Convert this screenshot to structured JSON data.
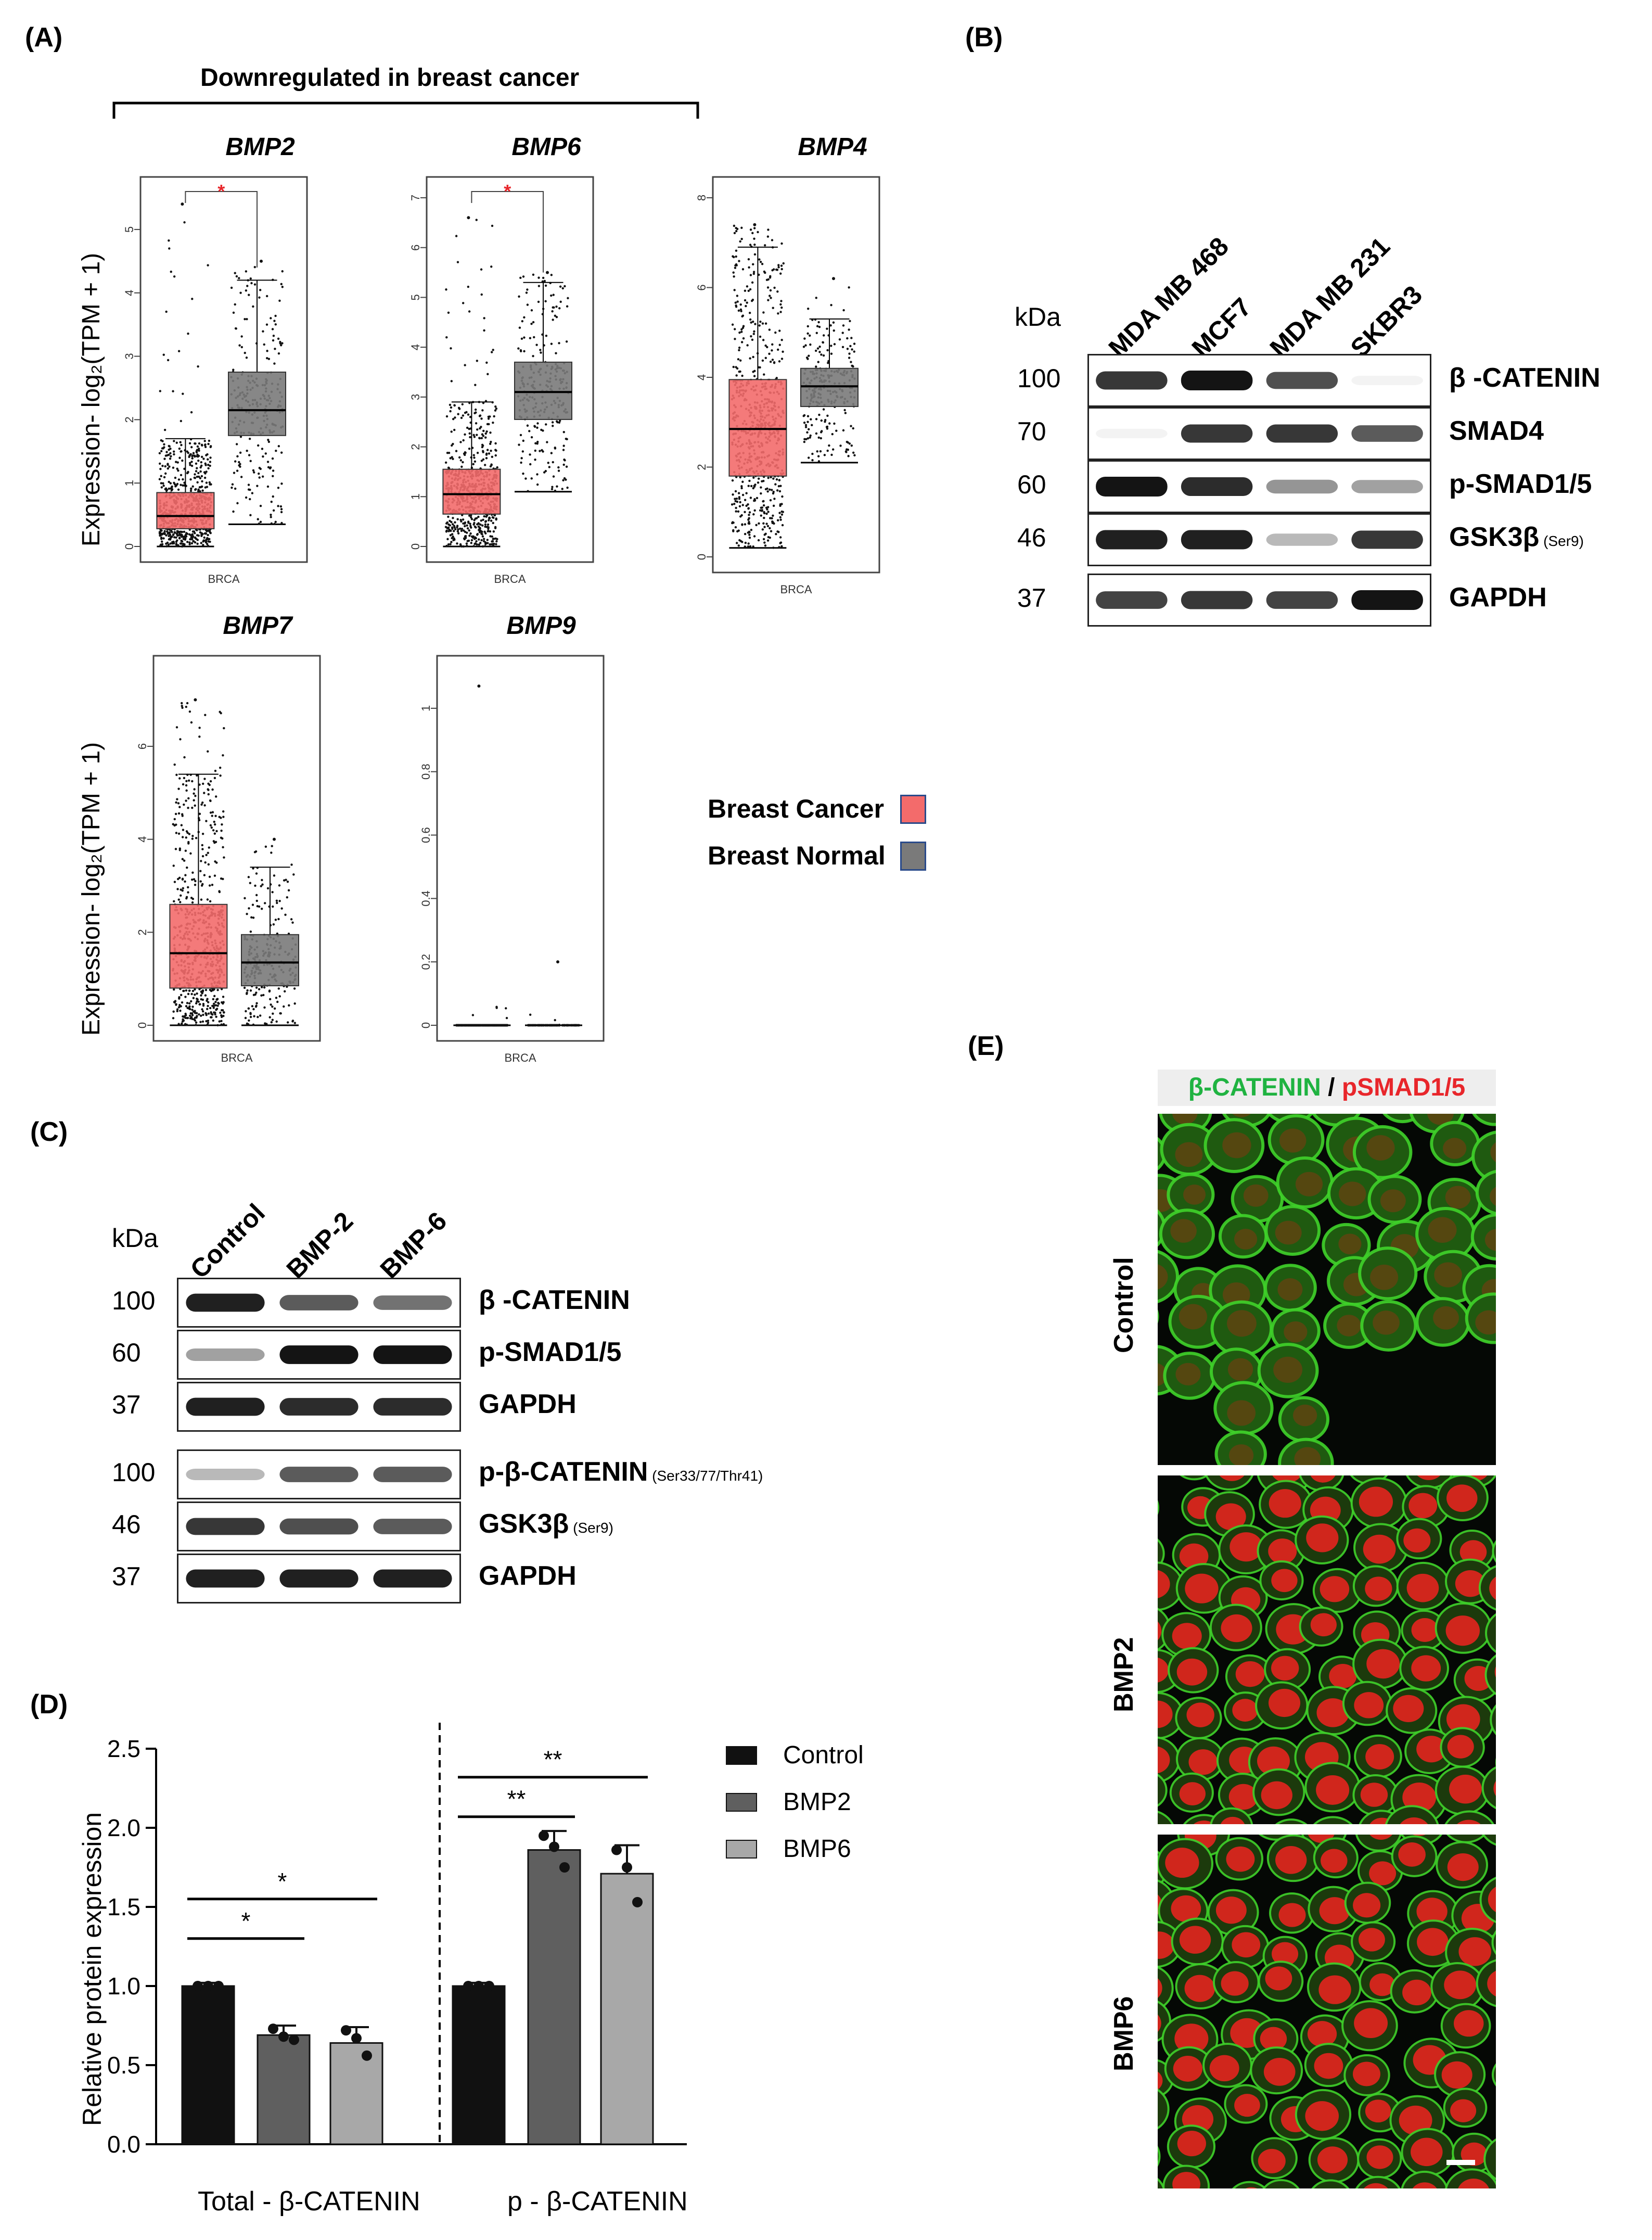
{
  "panel_labels": {
    "A": "(A)",
    "B": "(B)",
    "C": "(C)",
    "D": "(D)",
    "E": "(E)"
  },
  "panelA": {
    "bracket_label": "Downregulated in breast cancer",
    "ylabel": "Expression- log₂(TPM + 1)",
    "xtick": "BRCA",
    "legend": [
      {
        "label": "Breast Cancer",
        "color": "#f36b6b"
      },
      {
        "label": "Breast Normal",
        "color": "#7a7a7a"
      }
    ],
    "significance": "*"
  },
  "chart_data": [
    {
      "type": "box",
      "title": "BMP2",
      "x": [
        "BRCA"
      ],
      "ylim": [
        0,
        5.5
      ],
      "yticks": [
        0,
        1,
        2,
        3,
        4,
        5
      ],
      "series": [
        {
          "name": "Breast Cancer",
          "median": 0.48,
          "q1": 0.28,
          "q3": 0.85,
          "whisker_low": 0,
          "whisker_high": 1.7,
          "max": 5.4
        },
        {
          "name": "Breast Normal",
          "median": 2.15,
          "q1": 1.75,
          "q3": 2.75,
          "whisker_low": 0.35,
          "whisker_high": 4.2,
          "max": 4.5
        }
      ]
    },
    {
      "type": "box",
      "title": "BMP6",
      "x": [
        "BRCA"
      ],
      "ylim": [
        0,
        7
      ],
      "yticks": [
        0,
        1,
        2,
        3,
        4,
        5,
        6,
        7
      ],
      "series": [
        {
          "name": "Breast Cancer",
          "median": 1.05,
          "q1": 0.65,
          "q3": 1.55,
          "whisker_low": 0,
          "whisker_high": 2.9,
          "max": 6.6
        },
        {
          "name": "Breast Normal",
          "median": 3.1,
          "q1": 2.55,
          "q3": 3.7,
          "whisker_low": 1.1,
          "whisker_high": 5.3,
          "max": 5.5
        }
      ]
    },
    {
      "type": "box",
      "title": "BMP4",
      "x": [
        "BRCA"
      ],
      "ylim": [
        0,
        8
      ],
      "yticks": [
        0,
        2,
        4,
        6,
        8
      ],
      "series": [
        {
          "name": "Breast Cancer",
          "median": 2.85,
          "q1": 1.8,
          "q3": 3.95,
          "whisker_low": 0.2,
          "whisker_high": 6.9,
          "max": 7.4
        },
        {
          "name": "Breast Normal",
          "median": 3.8,
          "q1": 3.35,
          "q3": 4.2,
          "whisker_low": 2.1,
          "whisker_high": 5.3,
          "max": 6.2
        }
      ]
    },
    {
      "type": "box",
      "title": "BMP7",
      "x": [
        "BRCA"
      ],
      "ylim": [
        0,
        7.5
      ],
      "yticks": [
        0,
        2,
        4,
        6
      ],
      "series": [
        {
          "name": "Breast Cancer",
          "median": 1.55,
          "q1": 0.8,
          "q3": 2.6,
          "whisker_low": 0,
          "whisker_high": 5.4,
          "max": 7.0
        },
        {
          "name": "Breast Normal",
          "median": 1.35,
          "q1": 0.85,
          "q3": 1.95,
          "whisker_low": 0,
          "whisker_high": 3.4,
          "max": 4.0
        }
      ]
    },
    {
      "type": "box",
      "title": "BMP9",
      "x": [
        "BRCA"
      ],
      "ylim": [
        0,
        1.1
      ],
      "yticks": [
        0.0,
        0.2,
        0.4,
        0.6,
        0.8,
        1.0
      ],
      "series": [
        {
          "name": "Breast Cancer",
          "median": 0,
          "q1": 0,
          "q3": 0,
          "whisker_low": 0,
          "whisker_high": 0,
          "max": 1.07
        },
        {
          "name": "Breast Normal",
          "median": 0,
          "q1": 0,
          "q3": 0,
          "whisker_low": 0,
          "whisker_high": 0,
          "max": 0.2
        }
      ]
    },
    {
      "type": "bar",
      "title": "",
      "ylabel": "Relative protein expression",
      "ylim": [
        0,
        2.5
      ],
      "yticks": [
        "0.0",
        "0.5",
        "1.0",
        "1.5",
        "2.0",
        "2.5"
      ],
      "categories": [
        "Total - β-CATENIN",
        "p - β-CATENIN"
      ],
      "series": [
        {
          "name": "Control",
          "color": "#111111",
          "values": [
            1.0,
            1.0
          ],
          "err": [
            0.02,
            0.02
          ],
          "points": [
            [
              1.0,
              1.0,
              1.0
            ],
            [
              1.0,
              1.0,
              1.0
            ]
          ]
        },
        {
          "name": "BMP2",
          "color": "#5f5f5f",
          "values": [
            0.69,
            1.86
          ],
          "err": [
            0.06,
            0.12
          ],
          "points": [
            [
              0.73,
              0.68,
              0.66
            ],
            [
              1.95,
              1.88,
              1.75
            ]
          ]
        },
        {
          "name": "BMP6",
          "color": "#a8a8a8",
          "values": [
            0.64,
            1.71
          ],
          "err": [
            0.1,
            0.18
          ],
          "points": [
            [
              0.72,
              0.67,
              0.56
            ],
            [
              1.86,
              1.75,
              1.53
            ]
          ]
        }
      ],
      "significance": [
        "*",
        "*",
        "**",
        "**"
      ]
    }
  ],
  "panelB": {
    "kda_label": "kDa",
    "columns": [
      "MDA MB 468",
      "MCF7",
      "MDA MB 231",
      "SKBR3"
    ],
    "rows": [
      {
        "kda": "100",
        "protein": "β -CATENIN",
        "note": "",
        "intensity": [
          0.85,
          1.0,
          0.75,
          0.05
        ]
      },
      {
        "kda": "70",
        "protein": "SMAD4",
        "note": "",
        "intensity": [
          0.05,
          0.85,
          0.85,
          0.7
        ]
      },
      {
        "kda": "60",
        "protein": "p-SMAD1/5",
        "note": "",
        "intensity": [
          1.0,
          0.9,
          0.45,
          0.4
        ]
      },
      {
        "kda": "46",
        "protein": "GSK3β",
        "note": "(Ser9)",
        "intensity": [
          0.95,
          0.95,
          0.3,
          0.85
        ]
      },
      {
        "kda": "37",
        "protein": "GAPDH",
        "note": "",
        "intensity": [
          0.8,
          0.85,
          0.8,
          1.0
        ]
      }
    ]
  },
  "panelC": {
    "kda_label": "kDa",
    "columns": [
      "Control",
      "BMP-2",
      "BMP-6"
    ],
    "rows": [
      {
        "kda": "100",
        "protein": "β -CATENIN",
        "note": "",
        "intensity": [
          0.95,
          0.7,
          0.6
        ]
      },
      {
        "kda": "60",
        "protein": "p-SMAD1/5",
        "note": "",
        "intensity": [
          0.4,
          1.0,
          1.0
        ]
      },
      {
        "kda": "37",
        "protein": "GAPDH",
        "note": "",
        "intensity": [
          0.95,
          0.9,
          0.9
        ]
      },
      {
        "kda": "100",
        "protein": "p-β-CATENIN",
        "note": "(Ser33/77/Thr41)",
        "intensity": [
          0.3,
          0.7,
          0.7
        ]
      },
      {
        "kda": "46",
        "protein": "GSK3β",
        "note": "(Ser9)",
        "intensity": [
          0.85,
          0.75,
          0.7
        ]
      },
      {
        "kda": "37",
        "protein": "GAPDH",
        "note": "",
        "intensity": [
          0.95,
          0.95,
          0.95
        ]
      }
    ]
  },
  "panelE": {
    "header_green": "β-CATENIN",
    "header_sep": " / ",
    "header_red": "pSMAD1/5",
    "rows": [
      "Control",
      "BMP2",
      "BMP6"
    ]
  }
}
